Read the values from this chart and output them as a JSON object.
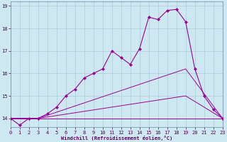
{
  "xlabel": "Windchill (Refroidissement éolien,°C)",
  "xlim": [
    0,
    23
  ],
  "ylim": [
    13.6,
    19.2
  ],
  "xticks": [
    0,
    1,
    2,
    3,
    4,
    5,
    6,
    7,
    8,
    9,
    10,
    11,
    12,
    13,
    14,
    15,
    16,
    17,
    18,
    19,
    20,
    21,
    22,
    23
  ],
  "yticks": [
    14,
    15,
    16,
    17,
    18,
    19
  ],
  "background_color": "#cde8f0",
  "line_color": "#990099",
  "grid_color": "#aaccdd",
  "figsize": [
    3.2,
    2.0
  ],
  "dpi": 100,
  "series": {
    "main": {
      "x": [
        0,
        1,
        2,
        3,
        4,
        5,
        6,
        7,
        8,
        9,
        10,
        11,
        12,
        13,
        14,
        15,
        16,
        17,
        18,
        19,
        20,
        21,
        22,
        23
      ],
      "y": [
        14.0,
        13.7,
        14.0,
        14.0,
        14.2,
        14.5,
        15.0,
        15.3,
        15.8,
        16.0,
        16.2,
        17.0,
        16.7,
        16.4,
        17.1,
        18.5,
        18.4,
        18.8,
        18.85,
        18.3,
        16.2,
        15.0,
        14.4,
        14.0
      ]
    },
    "line2": {
      "x": [
        0,
        3,
        23
      ],
      "y": [
        14.0,
        14.0,
        14.0
      ]
    },
    "line3": {
      "x": [
        0,
        3,
        19,
        23
      ],
      "y": [
        14.0,
        14.0,
        15.0,
        14.0
      ]
    },
    "line4": {
      "x": [
        0,
        3,
        19,
        23
      ],
      "y": [
        14.0,
        14.0,
        16.2,
        14.0
      ]
    }
  }
}
